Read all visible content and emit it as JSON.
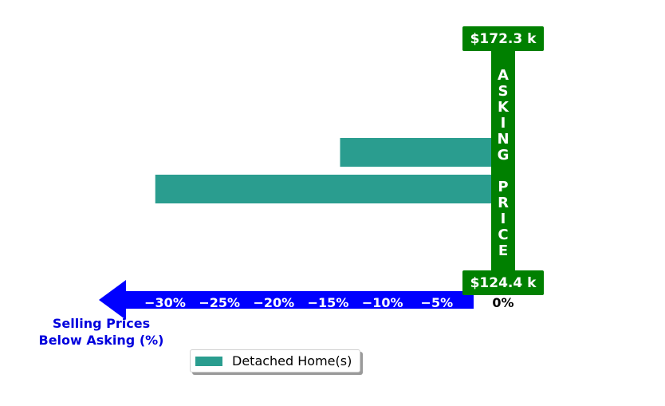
{
  "chart_data": {
    "type": "bar",
    "orientation": "horizontal",
    "series": [
      {
        "name": "Detached Home(s)",
        "color": "#2a9d8f",
        "values": [
          -13.9,
          -30.9
        ]
      }
    ],
    "xlim": [
      -31.5,
      0
    ],
    "x_ticks": [
      "−30%",
      "−25%",
      "−20%",
      "−15%",
      "−10%",
      "−5%"
    ],
    "x_tick_values": [
      -30,
      -25,
      -20,
      -15,
      -10,
      -5
    ],
    "zero_label": "0%",
    "axis_label": "Selling Prices\nBelow Asking (%)",
    "axis_label_lines": [
      "Selling Prices",
      "Below Asking (%)"
    ],
    "asking_price_label": "ASKING PRICE",
    "asking_price_letters": [
      "A",
      "S",
      "K",
      "I",
      "N",
      "G",
      "",
      "P",
      "R",
      "I",
      "C",
      "E"
    ],
    "price_top": "$172.3 k",
    "price_bottom": "$124.4 k",
    "legend_placement": "bottom-center",
    "colors": {
      "bar": "#2a9d8f",
      "arrow": "#0000ff",
      "pillar": "#008000",
      "axis_label": "#0000dd",
      "tick_text": "#ffffff"
    }
  },
  "legend": {
    "label": "Detached Home(s)",
    "color": "#2a9d8f"
  }
}
